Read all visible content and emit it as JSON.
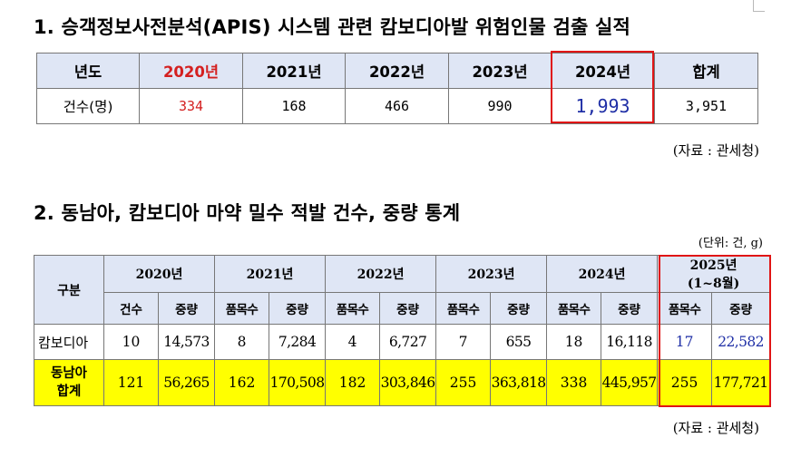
{
  "section1": {
    "title": "1. 승객정보사전분석(APIS) 시스템 관련 캄보디아발 위험인물 검출 실적",
    "headers": [
      "년도",
      "2020년",
      "2021년",
      "2022년",
      "2023년",
      "2024년",
      "합계"
    ],
    "row_label": "건수(명)",
    "values": [
      "334",
      "168",
      "466",
      "990",
      "1,993",
      "3,951"
    ],
    "source": "(자료 : 관세청)"
  },
  "section2": {
    "title": "2. 동남아, 캄보디아 마약 밀수 적발 건수, 중량 통계",
    "unit": "(단위: 건, g)",
    "corner_label": "구분",
    "years": [
      "2020년",
      "2021년",
      "2022년",
      "2023년",
      "2024년",
      "2025년",
      "(1~8월)"
    ],
    "sub_count_2020": "건수",
    "sub_count": "품목수",
    "sub_weight": "중량",
    "rows": [
      {
        "label": "캄보디아",
        "values": [
          "10",
          "14,573",
          "8",
          "7,284",
          "4",
          "6,727",
          "7",
          "655",
          "18",
          "16,118",
          "17",
          "22,582"
        ]
      },
      {
        "label_line1": "동남아",
        "label_line2": "합계",
        "values": [
          "121",
          "56,265",
          "162",
          "170,508",
          "182",
          "303,846",
          "255",
          "363,818",
          "338",
          "445,957",
          "255",
          "177,721"
        ]
      }
    ],
    "source": "(자료 : 관세청)"
  },
  "colors": {
    "highlight_border": "#e01515",
    "header_bg": "#dfe6f5",
    "total_row_bg": "#ffff00",
    "red_text": "#d42020",
    "blue_text": "#1f2fa6"
  }
}
